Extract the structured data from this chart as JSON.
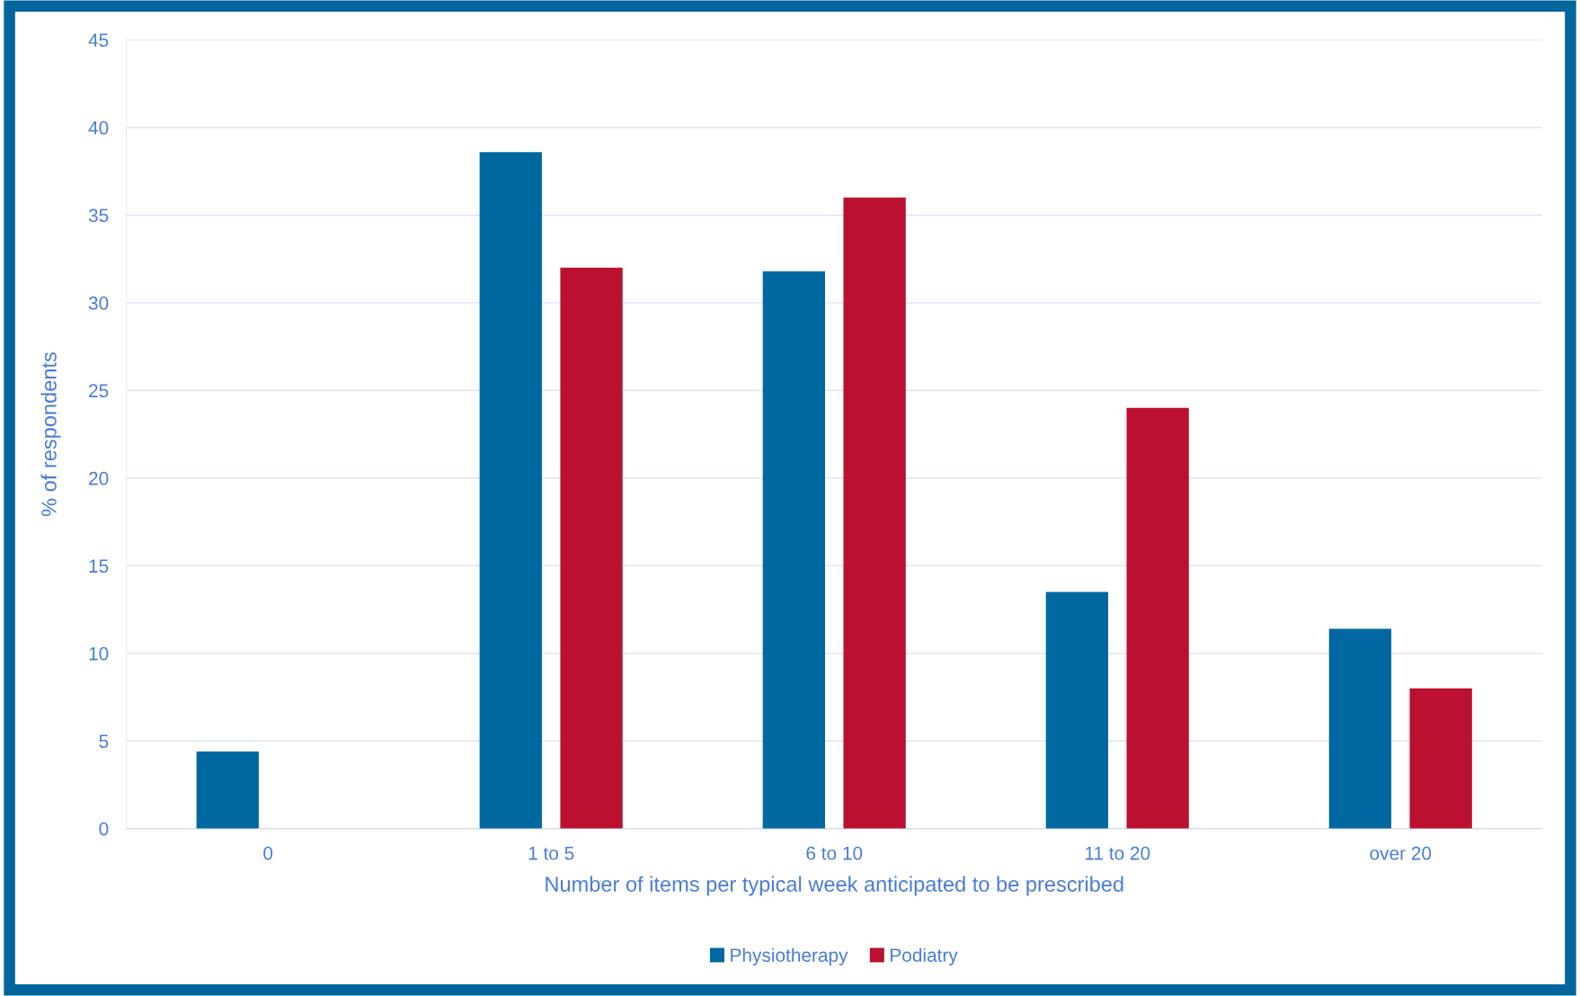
{
  "chart_data": {
    "type": "bar",
    "categories": [
      "0",
      "1 to 5",
      "6 to 10",
      "11 to 20",
      "over 20"
    ],
    "series": [
      {
        "name": "Physiotherapy",
        "color": "#0068a0",
        "values": [
          4.4,
          38.6,
          31.8,
          13.5,
          11.4
        ]
      },
      {
        "name": "Podiatry",
        "color": "#bb102f",
        "values": [
          0,
          32,
          36,
          24,
          8
        ]
      }
    ],
    "xlabel": "Number of items per typical week anticipated to be prescribed",
    "ylabel": "% of respondents",
    "ylim": [
      0,
      45
    ],
    "yticks": [
      0,
      5,
      10,
      15,
      20,
      25,
      30,
      35,
      40,
      45
    ],
    "grid": "y",
    "legend": "bottom"
  }
}
